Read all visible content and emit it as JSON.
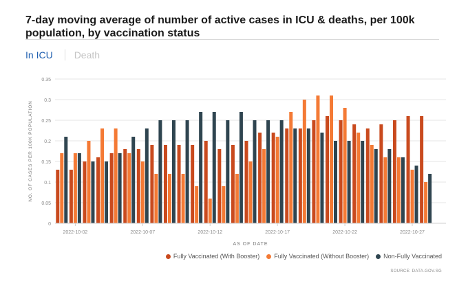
{
  "title": "7-day moving average of number of active cases in ICU & deaths, per 100k population, by vaccination status",
  "tabs": [
    {
      "label": "In ICU",
      "active": true
    },
    {
      "label": "Death",
      "active": false
    }
  ],
  "source": "SOURCE: DATA.GOV.SG",
  "colors": {
    "booster": "#c94a1e",
    "without_booster": "#f47a35",
    "non_vaccinated": "#2f4550",
    "axis_text": "#8a8a8a",
    "gridline": "#e6e6e6",
    "active_tab": "#1f5fb0"
  },
  "chart_data": {
    "type": "bar",
    "xlabel": "AS OF DATE",
    "ylabel": "NO. OF CASES PER 100K POPULATION",
    "ylim": [
      0,
      0.35
    ],
    "yticks": [
      0,
      0.05,
      0.1,
      0.15,
      0.2,
      0.25,
      0.3,
      0.35
    ],
    "ytick_labels": [
      "0",
      "0.05",
      "0.1",
      "0.15",
      "0.2",
      "0.25",
      "0.3",
      "0.35"
    ],
    "grid": true,
    "legend_position": "bottom-right",
    "categories": [
      "2022-10-01",
      "2022-10-02",
      "2022-10-03",
      "2022-10-04",
      "2022-10-05",
      "2022-10-06",
      "2022-10-07",
      "2022-10-08",
      "2022-10-09",
      "2022-10-10",
      "2022-10-11",
      "2022-10-12",
      "2022-10-13",
      "2022-10-14",
      "2022-10-15",
      "2022-10-16",
      "2022-10-17",
      "2022-10-18",
      "2022-10-19",
      "2022-10-20",
      "2022-10-21",
      "2022-10-22",
      "2022-10-23",
      "2022-10-24",
      "2022-10-25",
      "2022-10-26",
      "2022-10-27",
      "2022-10-28",
      "2022-10-29"
    ],
    "xtick_labels": [
      {
        "index": 1,
        "label": "2022-10-02"
      },
      {
        "index": 6,
        "label": "2022-10-07"
      },
      {
        "index": 11,
        "label": "2022-10-12"
      },
      {
        "index": 16,
        "label": "2022-10-17"
      },
      {
        "index": 21,
        "label": "2022-10-22"
      },
      {
        "index": 26,
        "label": "2022-10-27"
      }
    ],
    "series": [
      {
        "name": "Fully Vaccinated (With Booster)",
        "color": "#c94a1e",
        "values": [
          0.13,
          0.13,
          0.15,
          0.16,
          0.17,
          0.18,
          0.18,
          0.19,
          0.19,
          0.19,
          0.19,
          0.2,
          0.18,
          0.19,
          0.2,
          0.22,
          0.22,
          0.23,
          0.23,
          0.25,
          0.26,
          0.25,
          0.24,
          0.23,
          0.24,
          0.25,
          0.26,
          0.26,
          null
        ]
      },
      {
        "name": "Fully Vaccinated (Without Booster)",
        "color": "#f47a35",
        "values": [
          0.17,
          0.17,
          0.2,
          0.23,
          0.23,
          0.17,
          0.15,
          0.12,
          0.12,
          0.12,
          0.09,
          0.06,
          0.09,
          0.12,
          0.15,
          0.18,
          0.21,
          0.27,
          0.3,
          0.31,
          0.31,
          0.28,
          0.22,
          0.19,
          0.16,
          0.16,
          0.13,
          0.1,
          null
        ]
      },
      {
        "name": "Non-Fully Vaccinated",
        "color": "#2f4550",
        "values": [
          0.21,
          0.17,
          0.15,
          0.15,
          0.17,
          0.21,
          0.23,
          0.25,
          0.25,
          0.25,
          0.27,
          0.27,
          0.25,
          0.27,
          0.25,
          0.25,
          0.25,
          0.23,
          0.23,
          0.22,
          0.2,
          0.2,
          0.2,
          0.18,
          0.18,
          0.16,
          0.14,
          0.12,
          null
        ]
      }
    ]
  }
}
